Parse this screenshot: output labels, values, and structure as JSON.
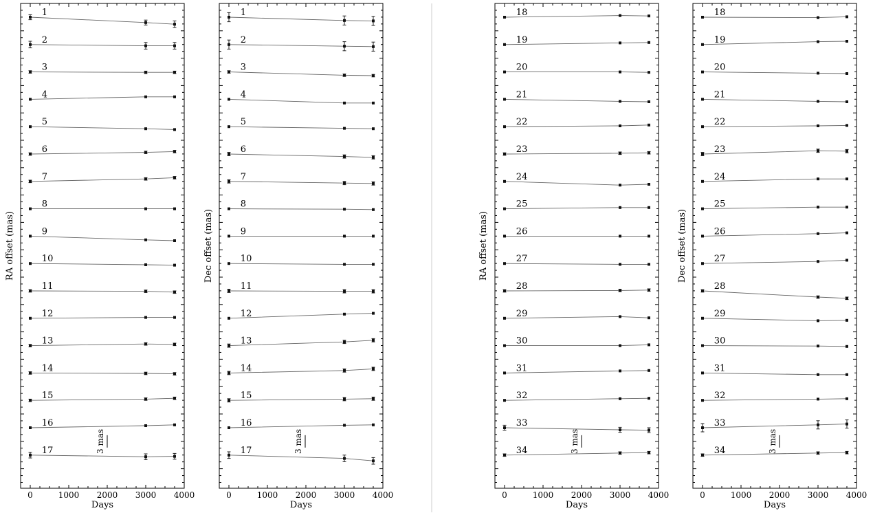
{
  "chart_data": [
    {
      "type": "line",
      "ylabel": "RA offset (mas)",
      "xlabel": "Days",
      "xlim": [
        -250,
        4000
      ],
      "xticks": [
        "0",
        "1000",
        "2000",
        "3000",
        "4000"
      ],
      "x": [
        0,
        3000,
        3750
      ],
      "scale_bar": "3 mas",
      "series": [
        {
          "name": "1",
          "values": [
            0.0,
            -1.3,
            -1.7
          ],
          "errors": [
            0.6,
            0.6,
            0.8
          ]
        },
        {
          "name": "2",
          "values": [
            0.0,
            -0.3,
            -0.3
          ],
          "errors": [
            0.8,
            0.8,
            0.8
          ]
        },
        {
          "name": "3",
          "values": [
            0.0,
            -0.1,
            -0.1
          ],
          "errors": [
            0.3,
            0.3,
            0.3
          ]
        },
        {
          "name": "4",
          "values": [
            0.0,
            0.6,
            0.6
          ],
          "errors": [
            0.1,
            0.1,
            0.1
          ]
        },
        {
          "name": "5",
          "values": [
            0.0,
            -0.5,
            -0.7
          ],
          "errors": [
            0.1,
            0.1,
            0.1
          ]
        },
        {
          "name": "6",
          "values": [
            0.0,
            0.4,
            0.6
          ],
          "errors": [
            0.3,
            0.3,
            0.3
          ]
        },
        {
          "name": "7",
          "values": [
            0.0,
            0.6,
            0.9
          ],
          "errors": [
            0.3,
            0.3,
            0.3
          ]
        },
        {
          "name": "8",
          "values": [
            0.0,
            0.0,
            0.0
          ],
          "errors": [
            0.1,
            0.1,
            0.1
          ]
        },
        {
          "name": "9",
          "values": [
            0.0,
            -0.9,
            -1.1
          ],
          "errors": [
            0.1,
            0.1,
            0.1
          ]
        },
        {
          "name": "10",
          "values": [
            0.0,
            -0.3,
            -0.4
          ],
          "errors": [
            0.1,
            0.1,
            0.1
          ]
        },
        {
          "name": "11",
          "values": [
            0.0,
            -0.1,
            -0.3
          ],
          "errors": [
            0.3,
            0.3,
            0.3
          ]
        },
        {
          "name": "12",
          "values": [
            0.0,
            0.2,
            0.2
          ],
          "errors": [
            0.1,
            0.1,
            0.1
          ]
        },
        {
          "name": "13",
          "values": [
            0.0,
            0.4,
            0.3
          ],
          "errors": [
            0.3,
            0.3,
            0.3
          ]
        },
        {
          "name": "14",
          "values": [
            0.0,
            -0.1,
            -0.2
          ],
          "errors": [
            0.3,
            0.3,
            0.3
          ]
        },
        {
          "name": "15",
          "values": [
            0.0,
            0.3,
            0.5
          ],
          "errors": [
            0.3,
            0.3,
            0.3
          ]
        },
        {
          "name": "16",
          "values": [
            0.0,
            0.5,
            0.7
          ],
          "errors": [
            0.1,
            0.1,
            0.1
          ]
        },
        {
          "name": "17",
          "values": [
            0.0,
            -0.4,
            -0.3
          ],
          "errors": [
            0.7,
            0.7,
            0.7
          ]
        }
      ]
    },
    {
      "type": "line",
      "ylabel": "Dec offset (mas)",
      "xlabel": "Days",
      "xlim": [
        -250,
        4000
      ],
      "xticks": [
        "0",
        "1000",
        "2000",
        "3000",
        "4000"
      ],
      "x": [
        0,
        3000,
        3750
      ],
      "scale_bar": "3 mas",
      "series": [
        {
          "name": "1",
          "values": [
            0.0,
            -0.8,
            -0.9
          ],
          "errors": [
            1.1,
            1.1,
            1.1
          ]
        },
        {
          "name": "2",
          "values": [
            0.0,
            -0.4,
            -0.5
          ],
          "errors": [
            1.1,
            1.1,
            1.1
          ]
        },
        {
          "name": "3",
          "values": [
            0.0,
            -0.8,
            -0.9
          ],
          "errors": [
            0.3,
            0.3,
            0.3
          ]
        },
        {
          "name": "4",
          "values": [
            0.0,
            -0.9,
            -0.9
          ],
          "errors": [
            0.1,
            0.1,
            0.1
          ]
        },
        {
          "name": "5",
          "values": [
            0.0,
            -0.4,
            -0.5
          ],
          "errors": [
            0.1,
            0.1,
            0.1
          ]
        },
        {
          "name": "6",
          "values": [
            0.0,
            -0.6,
            -0.8
          ],
          "errors": [
            0.4,
            0.4,
            0.4
          ]
        },
        {
          "name": "7",
          "values": [
            0.0,
            -0.4,
            -0.5
          ],
          "errors": [
            0.4,
            0.4,
            0.4
          ]
        },
        {
          "name": "8",
          "values": [
            0.0,
            -0.1,
            -0.2
          ],
          "errors": [
            0.1,
            0.1,
            0.1
          ]
        },
        {
          "name": "9",
          "values": [
            0.0,
            0.0,
            0.0
          ],
          "errors": [
            0.1,
            0.1,
            0.1
          ]
        },
        {
          "name": "10",
          "values": [
            0.0,
            -0.2,
            -0.2
          ],
          "errors": [
            0.1,
            0.1,
            0.1
          ]
        },
        {
          "name": "11",
          "values": [
            0.0,
            -0.1,
            -0.1
          ],
          "errors": [
            0.4,
            0.4,
            0.4
          ]
        },
        {
          "name": "12",
          "values": [
            0.0,
            1.0,
            1.2
          ],
          "errors": [
            0.1,
            0.1,
            0.1
          ]
        },
        {
          "name": "13",
          "values": [
            0.0,
            0.9,
            1.3
          ],
          "errors": [
            0.4,
            0.4,
            0.4
          ]
        },
        {
          "name": "14",
          "values": [
            0.0,
            0.6,
            1.0
          ],
          "errors": [
            0.4,
            0.4,
            0.4
          ]
        },
        {
          "name": "15",
          "values": [
            0.0,
            0.3,
            0.4
          ],
          "errors": [
            0.4,
            0.4,
            0.4
          ]
        },
        {
          "name": "16",
          "values": [
            0.0,
            0.6,
            0.7
          ],
          "errors": [
            0.1,
            0.1,
            0.1
          ]
        },
        {
          "name": "17",
          "values": [
            0.0,
            -0.8,
            -1.4
          ],
          "errors": [
            0.8,
            0.8,
            0.8
          ]
        }
      ]
    },
    {
      "type": "line",
      "ylabel": "RA offset (mas)",
      "xlabel": "Days",
      "xlim": [
        -250,
        4000
      ],
      "xticks": [
        "0",
        "1000",
        "2000",
        "3000",
        "4000"
      ],
      "x": [
        0,
        3000,
        3750
      ],
      "scale_bar": "3 mas",
      "series": [
        {
          "name": "18",
          "values": [
            0.0,
            0.4,
            0.3
          ],
          "errors": [
            0.1,
            0.1,
            0.1
          ]
        },
        {
          "name": "19",
          "values": [
            0.0,
            0.4,
            0.5
          ],
          "errors": [
            0.1,
            0.1,
            0.1
          ]
        },
        {
          "name": "20",
          "values": [
            0.0,
            0.0,
            -0.1
          ],
          "errors": [
            0.1,
            0.1,
            0.1
          ]
        },
        {
          "name": "21",
          "values": [
            0.0,
            -0.5,
            -0.6
          ],
          "errors": [
            0.1,
            0.1,
            0.1
          ]
        },
        {
          "name": "22",
          "values": [
            0.0,
            0.2,
            0.4
          ],
          "errors": [
            0.1,
            0.1,
            0.1
          ]
        },
        {
          "name": "23",
          "values": [
            0.0,
            0.2,
            0.3
          ],
          "errors": [
            0.3,
            0.3,
            0.3
          ]
        },
        {
          "name": "24",
          "values": [
            0.0,
            -0.9,
            -0.7
          ],
          "errors": [
            0.1,
            0.1,
            0.1
          ]
        },
        {
          "name": "25",
          "values": [
            0.0,
            0.3,
            0.3
          ],
          "errors": [
            0.1,
            0.1,
            0.1
          ]
        },
        {
          "name": "26",
          "values": [
            0.0,
            0.0,
            0.0
          ],
          "errors": [
            0.1,
            0.1,
            0.1
          ]
        },
        {
          "name": "27",
          "values": [
            0.0,
            -0.2,
            -0.2
          ],
          "errors": [
            0.1,
            0.1,
            0.1
          ]
        },
        {
          "name": "28",
          "values": [
            0.0,
            0.1,
            0.2
          ],
          "errors": [
            0.3,
            0.3,
            0.3
          ]
        },
        {
          "name": "29",
          "values": [
            0.0,
            0.4,
            0.1
          ],
          "errors": [
            0.1,
            0.1,
            0.1
          ]
        },
        {
          "name": "30",
          "values": [
            0.0,
            0.0,
            0.2
          ],
          "errors": [
            0.1,
            0.1,
            0.1
          ]
        },
        {
          "name": "31",
          "values": [
            0.0,
            0.5,
            0.6
          ],
          "errors": [
            0.1,
            0.1,
            0.1
          ]
        },
        {
          "name": "32",
          "values": [
            0.0,
            0.4,
            0.5
          ],
          "errors": [
            0.1,
            0.1,
            0.1
          ]
        },
        {
          "name": "33",
          "values": [
            0.0,
            -0.5,
            -0.6
          ],
          "errors": [
            0.6,
            0.6,
            0.6
          ]
        },
        {
          "name": "34",
          "values": [
            0.0,
            0.5,
            0.6
          ],
          "errors": [
            0.3,
            0.3,
            0.3
          ]
        }
      ]
    },
    {
      "type": "line",
      "ylabel": "Dec offset (mas)",
      "xlabel": "Days",
      "xlim": [
        -250,
        4000
      ],
      "xticks": [
        "0",
        "1000",
        "2000",
        "3000",
        "4000"
      ],
      "x": [
        0,
        3000,
        3750
      ],
      "scale_bar": "3 mas",
      "series": [
        {
          "name": "18",
          "values": [
            0.0,
            -0.1,
            0.1
          ],
          "errors": [
            0.1,
            0.1,
            0.1
          ]
        },
        {
          "name": "19",
          "values": [
            0.0,
            0.7,
            0.8
          ],
          "errors": [
            0.1,
            0.1,
            0.1
          ]
        },
        {
          "name": "20",
          "values": [
            0.0,
            -0.3,
            -0.4
          ],
          "errors": [
            0.1,
            0.1,
            0.1
          ]
        },
        {
          "name": "21",
          "values": [
            0.0,
            -0.5,
            -0.6
          ],
          "errors": [
            0.1,
            0.1,
            0.1
          ]
        },
        {
          "name": "22",
          "values": [
            0.0,
            0.2,
            0.3
          ],
          "errors": [
            0.1,
            0.1,
            0.1
          ]
        },
        {
          "name": "23",
          "values": [
            0.0,
            0.8,
            0.7
          ],
          "errors": [
            0.4,
            0.4,
            0.4
          ]
        },
        {
          "name": "24",
          "values": [
            0.0,
            0.6,
            0.6
          ],
          "errors": [
            0.1,
            0.1,
            0.1
          ]
        },
        {
          "name": "25",
          "values": [
            0.0,
            0.4,
            0.4
          ],
          "errors": [
            0.1,
            0.1,
            0.1
          ]
        },
        {
          "name": "26",
          "values": [
            0.0,
            0.6,
            0.8
          ],
          "errors": [
            0.1,
            0.1,
            0.1
          ]
        },
        {
          "name": "27",
          "values": [
            0.0,
            0.5,
            0.8
          ],
          "errors": [
            0.1,
            0.1,
            0.1
          ]
        },
        {
          "name": "28",
          "values": [
            0.0,
            -1.5,
            -1.8
          ],
          "errors": [
            0.3,
            0.3,
            0.3
          ]
        },
        {
          "name": "29",
          "values": [
            0.0,
            -0.6,
            -0.5
          ],
          "errors": [
            0.1,
            0.1,
            0.1
          ]
        },
        {
          "name": "30",
          "values": [
            0.0,
            -0.1,
            -0.2
          ],
          "errors": [
            0.1,
            0.1,
            0.1
          ]
        },
        {
          "name": "31",
          "values": [
            0.0,
            -0.4,
            -0.4
          ],
          "errors": [
            0.1,
            0.1,
            0.1
          ]
        },
        {
          "name": "32",
          "values": [
            0.0,
            0.3,
            0.4
          ],
          "errors": [
            0.1,
            0.1,
            0.1
          ]
        },
        {
          "name": "33",
          "values": [
            0.0,
            0.7,
            0.9
          ],
          "errors": [
            1.0,
            1.0,
            1.0
          ]
        },
        {
          "name": "34",
          "values": [
            0.0,
            0.5,
            0.6
          ],
          "errors": [
            0.3,
            0.3,
            0.3
          ]
        }
      ]
    }
  ]
}
